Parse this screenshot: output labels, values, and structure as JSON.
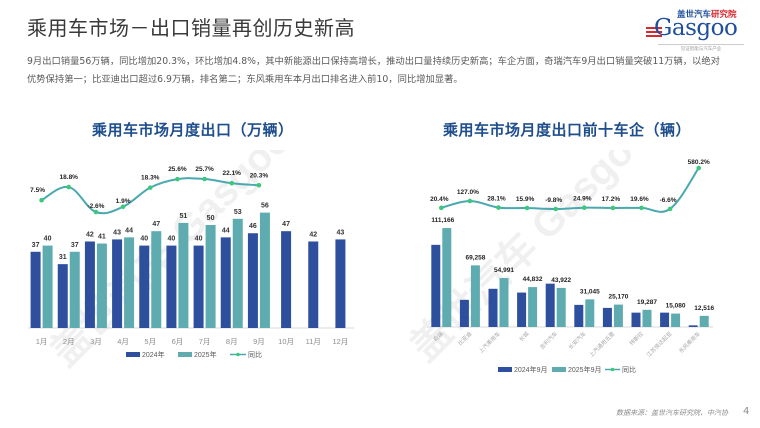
{
  "page": {
    "title": "乘用车市场－出口销量再创历史新高",
    "summary_line1": "9月出口销量56万辆，同比增加20.3%，环比增加4.8%，其中新能源出口保持高增长，推动出口量持续历史新高；车企方面，奇瑞汽车9月出口销量突破11万辆，以绝对",
    "summary_line2": "优势保持第一；比亚迪出口超过6.9万辆，排名第二；东风乘用车本月出口排名进入前10，同比增加显著。",
    "source": "数据来源：盖世汽车研究院、中汽协",
    "page_number": "4"
  },
  "logo": {
    "cn_blue": "盖世汽车",
    "cn_red": "研究院",
    "en": "Gasgoo",
    "tagline": "见证智能与汽车产业",
    "watermark": "盖世汽车 Gasgoo"
  },
  "colors": {
    "series_2024": "#2e4f9e",
    "series_2025": "#5eabb0",
    "yoy_line": "#4aa8b0",
    "yoy_marker": "#3cc87a",
    "title_blue": "#1f4e8c"
  },
  "chart_data": [
    {
      "type": "bar",
      "title": "乘用车市场月度出口（万辆）",
      "categories": [
        "1月",
        "2月",
        "3月",
        "4月",
        "5月",
        "6月",
        "7月",
        "8月",
        "9月",
        "10月",
        "11月",
        "12月"
      ],
      "series": [
        {
          "name": "2024年",
          "type": "bar",
          "values": [
            37,
            31,
            42,
            43,
            40,
            40,
            40,
            44,
            46,
            47,
            42,
            43
          ]
        },
        {
          "name": "2025年",
          "type": "bar",
          "values": [
            40,
            37,
            41,
            44,
            47,
            51,
            50,
            53,
            56,
            null,
            null,
            null
          ]
        },
        {
          "name": "同比",
          "type": "line",
          "values": [
            7.5,
            18.8,
            -2.6,
            1.9,
            18.3,
            25.6,
            25.7,
            22.1,
            20.3,
            null,
            null,
            null
          ],
          "labels": [
            "7.5%",
            "18.8%",
            "-2.6%",
            "1.9%",
            "18.3%",
            "25.6%",
            "25.7%",
            "22.1%",
            "20.3%",
            "",
            "",
            ""
          ]
        }
      ],
      "ylim": [
        0,
        60
      ],
      "legend": "bottom",
      "grid": false
    },
    {
      "type": "bar",
      "title": "乘用车市场月度出口前十车企（辆）",
      "categories": [
        "奇瑞",
        "比亚迪",
        "上汽乘用车",
        "长城",
        "吉利汽车",
        "长安汽车",
        "上汽通用五菱",
        "特斯拉",
        "江苏悦达起亚",
        "东风乘用车"
      ],
      "series": [
        {
          "name": "2024年9月",
          "type": "bar",
          "values": [
            92331,
            30510,
            42928,
            38682,
            48694,
            24856,
            21476,
            16126,
            16146,
            1840
          ]
        },
        {
          "name": "2025年9月",
          "type": "bar",
          "values": [
            111166,
            69258,
            54991,
            44832,
            43922,
            31045,
            25170,
            19287,
            15080,
            12516
          ],
          "labels": [
            "111,166",
            "69,258",
            "54,991",
            "44,832",
            "43,922",
            "31,045",
            "25,170",
            "19,287",
            "15,080",
            "12,516"
          ]
        },
        {
          "name": "同比",
          "type": "line",
          "values": [
            20.4,
            127.0,
            28.1,
            15.9,
            -9.8,
            24.9,
            17.2,
            19.6,
            -6.6,
            580.2
          ],
          "labels": [
            "20.4%",
            "127.0%",
            "28.1%",
            "15.9%",
            "-9.8%",
            "24.9%",
            "17.2%",
            "19.6%",
            "-6.6%",
            "580.2%"
          ]
        }
      ],
      "ylim": [
        0,
        120000
      ],
      "legend": "bottom",
      "grid": false
    }
  ]
}
